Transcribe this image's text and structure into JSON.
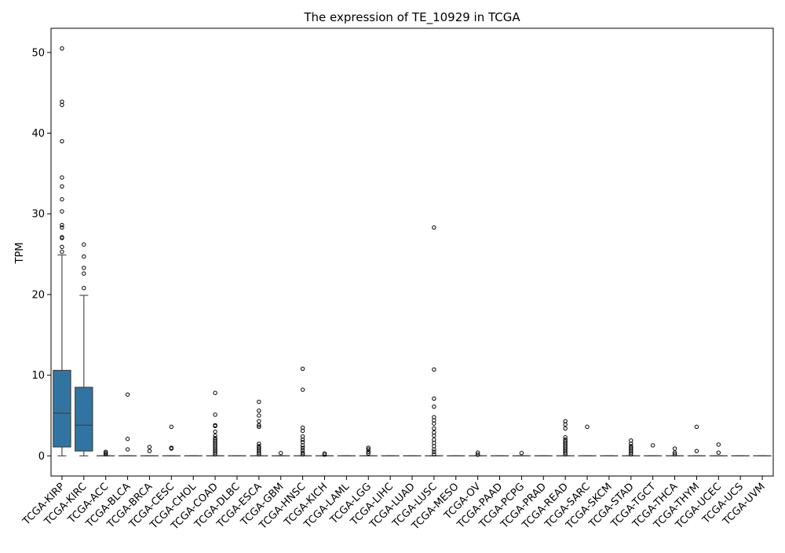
{
  "chart_data": {
    "type": "box",
    "title": "The expression of TE_10929 in TCGA",
    "xlabel": "",
    "ylabel": "TPM",
    "ylim": [
      -2.5,
      53
    ],
    "yticks": [
      0,
      10,
      20,
      30,
      40,
      50
    ],
    "grid": false,
    "legend": "none",
    "box_color": "#3274a1",
    "categories": [
      "TCGA-KIRP",
      "TCGA-KIRC",
      "TCGA-ACC",
      "TCGA-BLCA",
      "TCGA-BRCA",
      "TCGA-CESC",
      "TCGA-CHOL",
      "TCGA-COAD",
      "TCGA-DLBC",
      "TCGA-ESCA",
      "TCGA-GBM",
      "TCGA-HNSC",
      "TCGA-KICH",
      "TCGA-LAML",
      "TCGA-LGG",
      "TCGA-LIHC",
      "TCGA-LUAD",
      "TCGA-LUSC",
      "TCGA-MESO",
      "TCGA-OV",
      "TCGA-PAAD",
      "TCGA-PCPG",
      "TCGA-PRAD",
      "TCGA-READ",
      "TCGA-SARC",
      "TCGA-SKCM",
      "TCGA-STAD",
      "TCGA-TGCT",
      "TCGA-THCA",
      "TCGA-THYM",
      "TCGA-UCEC",
      "TCGA-UCS",
      "TCGA-UVM"
    ],
    "boxes": [
      {
        "min": 0,
        "q1": 1.1,
        "median": 5.3,
        "q3": 10.6,
        "max": 24.9,
        "outliers": [
          25.3,
          25.9,
          27.0,
          27.1,
          28.3,
          28.6,
          30.3,
          31.8,
          33.4,
          34.5,
          39.0,
          43.5,
          43.9,
          50.5
        ]
      },
      {
        "min": 0,
        "q1": 0.6,
        "median": 3.8,
        "q3": 8.5,
        "max": 19.9,
        "outliers": [
          20.8,
          22.6,
          23.3,
          24.7,
          26.2
        ]
      },
      {
        "min": 0,
        "q1": 0,
        "median": 0,
        "q3": 0,
        "max": 0,
        "outliers": [
          0.2,
          0.35,
          0.5
        ]
      },
      {
        "min": 0,
        "q1": 0,
        "median": 0,
        "q3": 0,
        "max": 0,
        "outliers": [
          0.8,
          2.1,
          7.6
        ]
      },
      {
        "min": 0,
        "q1": 0,
        "median": 0,
        "q3": 0,
        "max": 0,
        "outliers": [
          0.6,
          1.1
        ]
      },
      {
        "min": 0,
        "q1": 0,
        "median": 0,
        "q3": 0,
        "max": 0,
        "outliers": [
          0.9,
          1.0,
          3.6
        ]
      },
      {
        "min": 0,
        "q1": 0,
        "median": 0,
        "q3": 0,
        "max": 0,
        "outliers": []
      },
      {
        "min": 0,
        "q1": 0,
        "median": 0,
        "q3": 0,
        "max": 0,
        "outliers": [
          0.2,
          0.4,
          0.6,
          0.8,
          1.0,
          1.2,
          1.4,
          1.6,
          1.8,
          2.0,
          2.2,
          2.5,
          3.0,
          3.7,
          3.8,
          5.1,
          7.8
        ]
      },
      {
        "min": 0,
        "q1": 0,
        "median": 0,
        "q3": 0,
        "max": 0,
        "outliers": []
      },
      {
        "min": 0,
        "q1": 0,
        "median": 0,
        "q3": 0,
        "max": 0,
        "outliers": [
          0.2,
          0.4,
          0.6,
          0.8,
          1.0,
          1.2,
          1.5,
          3.6,
          3.8,
          4.3,
          5.0,
          5.6,
          6.7
        ]
      },
      {
        "min": 0,
        "q1": 0,
        "median": 0,
        "q3": 0,
        "max": 0,
        "outliers": [
          0.35
        ]
      },
      {
        "min": 0,
        "q1": 0,
        "median": 0,
        "q3": 0,
        "max": 0,
        "outliers": [
          0.2,
          0.4,
          0.7,
          1.0,
          1.3,
          1.7,
          2.0,
          2.4,
          3.1,
          3.5,
          8.2,
          10.8
        ]
      },
      {
        "min": 0,
        "q1": 0,
        "median": 0,
        "q3": 0,
        "max": 0,
        "outliers": [
          0.15,
          0.3
        ]
      },
      {
        "min": 0,
        "q1": 0,
        "median": 0,
        "q3": 0,
        "max": 0,
        "outliers": []
      },
      {
        "min": 0,
        "q1": 0,
        "median": 0,
        "q3": 0,
        "max": 0,
        "outliers": [
          0.3,
          0.5,
          0.8,
          1.0
        ]
      },
      {
        "min": 0,
        "q1": 0,
        "median": 0,
        "q3": 0,
        "max": 0,
        "outliers": []
      },
      {
        "min": 0,
        "q1": 0,
        "median": 0,
        "q3": 0,
        "max": 0,
        "outliers": []
      },
      {
        "min": 0,
        "q1": 0,
        "median": 0,
        "q3": 0,
        "max": 0,
        "outliers": [
          0.2,
          0.5,
          0.8,
          1.2,
          1.6,
          2.0,
          2.5,
          2.9,
          3.4,
          4.0,
          4.4,
          4.8,
          6.1,
          7.1,
          10.7,
          28.3
        ]
      },
      {
        "min": 0,
        "q1": 0,
        "median": 0,
        "q3": 0,
        "max": 0,
        "outliers": []
      },
      {
        "min": 0,
        "q1": 0,
        "median": 0,
        "q3": 0,
        "max": 0,
        "outliers": [
          0.15,
          0.4
        ]
      },
      {
        "min": 0,
        "q1": 0,
        "median": 0,
        "q3": 0,
        "max": 0,
        "outliers": []
      },
      {
        "min": 0,
        "q1": 0,
        "median": 0,
        "q3": 0,
        "max": 0,
        "outliers": [
          0.35
        ]
      },
      {
        "min": 0,
        "q1": 0,
        "median": 0,
        "q3": 0,
        "max": 0,
        "outliers": []
      },
      {
        "min": 0,
        "q1": 0,
        "median": 0,
        "q3": 0,
        "max": 0,
        "outliers": [
          0.2,
          0.4,
          0.6,
          0.8,
          1.0,
          1.2,
          1.4,
          1.6,
          1.8,
          2.0,
          2.3,
          3.4,
          3.9,
          4.3
        ]
      },
      {
        "min": 0,
        "q1": 0,
        "median": 0,
        "q3": 0,
        "max": 0,
        "outliers": [
          3.6
        ]
      },
      {
        "min": 0,
        "q1": 0,
        "median": 0,
        "q3": 0,
        "max": 0,
        "outliers": []
      },
      {
        "min": 0,
        "q1": 0,
        "median": 0,
        "q3": 0,
        "max": 0,
        "outliers": [
          0.2,
          0.4,
          0.6,
          0.8,
          1.0,
          1.2,
          1.5,
          1.9
        ]
      },
      {
        "min": 0,
        "q1": 0,
        "median": 0,
        "q3": 0,
        "max": 0,
        "outliers": [
          1.3
        ]
      },
      {
        "min": 0,
        "q1": 0,
        "median": 0,
        "q3": 0,
        "max": 0,
        "outliers": [
          0.2,
          0.4,
          0.9
        ]
      },
      {
        "min": 0,
        "q1": 0,
        "median": 0,
        "q3": 0,
        "max": 0,
        "outliers": [
          0.6,
          3.6
        ]
      },
      {
        "min": 0,
        "q1": 0,
        "median": 0,
        "q3": 0,
        "max": 0,
        "outliers": [
          0.4,
          1.4
        ]
      },
      {
        "min": 0,
        "q1": 0,
        "median": 0,
        "q3": 0,
        "max": 0,
        "outliers": []
      },
      {
        "min": 0,
        "q1": 0,
        "median": 0,
        "q3": 0,
        "max": 0,
        "outliers": []
      }
    ]
  }
}
